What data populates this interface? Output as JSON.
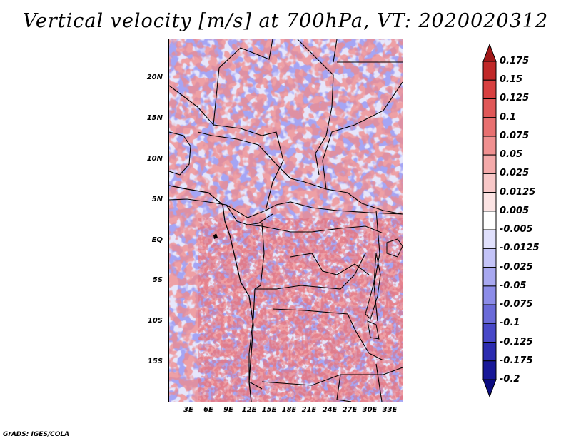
{
  "title": "Vertical velocity [m/s] at 700hPa, VT: 2020020312",
  "credit": "GrADS: IGES/COLA",
  "map": {
    "lat_labels": [
      "20N",
      "15N",
      "10N",
      "5N",
      "EQ",
      "5S",
      "10S",
      "15S"
    ],
    "lon_labels": [
      "3E",
      "6E",
      "9E",
      "12E",
      "15E",
      "18E",
      "21E",
      "24E",
      "27E",
      "30E",
      "33E"
    ]
  },
  "colorbar": {
    "levels": [
      "0.175",
      "0.15",
      "0.125",
      "0.1",
      "0.075",
      "0.05",
      "0.025",
      "0.0125",
      "0.005",
      "-0.005",
      "-0.0125",
      "-0.025",
      "-0.05",
      "-0.075",
      "-0.1",
      "-0.125",
      "-0.175",
      "-0.2"
    ],
    "colors": [
      "#a01818",
      "#c02828",
      "#d84040",
      "#e05858",
      "#e87070",
      "#f09090",
      "#f4aaaa",
      "#f8c8c8",
      "#fce4e4",
      "#ffffff",
      "#e0e0fc",
      "#c4c4f8",
      "#a8a8f0",
      "#8c8ce8",
      "#6a6ad8",
      "#4848c8",
      "#2c2cb0",
      "#181898",
      "#0c0c80"
    ]
  }
}
